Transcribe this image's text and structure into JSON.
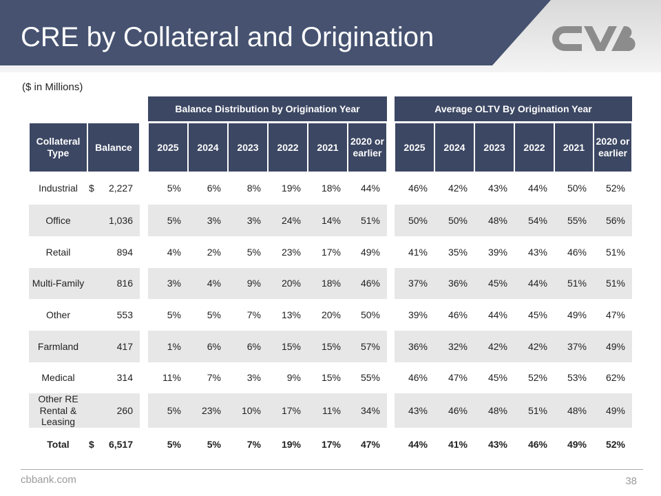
{
  "header": {
    "title": "CRE by Collateral and Origination",
    "subtitle": "($ in Millions)"
  },
  "table": {
    "group_headers": {
      "distribution": "Balance Distribution by Origination Year",
      "oltv": "Average OLTV By Origination Year"
    },
    "columns": {
      "type": "Collateral Type",
      "balance": "Balance",
      "distribution": [
        "2025",
        "2024",
        "2023",
        "2022",
        "2021",
        "2020 or earlier"
      ],
      "oltv": [
        "2025",
        "2024",
        "2023",
        "2022",
        "2021",
        "2020 or earlier"
      ]
    },
    "rows": [
      {
        "type": "Industrial",
        "currency": "$",
        "balance": "2,227",
        "distribution": [
          "5%",
          "6%",
          "8%",
          "19%",
          "18%",
          "44%"
        ],
        "oltv": [
          "46%",
          "42%",
          "43%",
          "44%",
          "50%",
          "52%"
        ]
      },
      {
        "type": "Office",
        "balance": "1,036",
        "distribution": [
          "5%",
          "3%",
          "3%",
          "24%",
          "14%",
          "51%"
        ],
        "oltv": [
          "50%",
          "50%",
          "48%",
          "54%",
          "55%",
          "56%"
        ]
      },
      {
        "type": "Retail",
        "balance": "894",
        "distribution": [
          "4%",
          "2%",
          "5%",
          "23%",
          "17%",
          "49%"
        ],
        "oltv": [
          "41%",
          "35%",
          "39%",
          "43%",
          "46%",
          "51%"
        ]
      },
      {
        "type": "Multi-Family",
        "balance": "816",
        "distribution": [
          "3%",
          "4%",
          "9%",
          "20%",
          "18%",
          "46%"
        ],
        "oltv": [
          "37%",
          "36%",
          "45%",
          "44%",
          "51%",
          "51%"
        ]
      },
      {
        "type": "Other",
        "balance": "553",
        "distribution": [
          "5%",
          "5%",
          "7%",
          "13%",
          "20%",
          "50%"
        ],
        "oltv": [
          "39%",
          "46%",
          "44%",
          "45%",
          "49%",
          "47%"
        ]
      },
      {
        "type": "Farmland",
        "balance": "417",
        "distribution": [
          "1%",
          "6%",
          "6%",
          "15%",
          "15%",
          "57%"
        ],
        "oltv": [
          "36%",
          "32%",
          "42%",
          "42%",
          "37%",
          "49%"
        ]
      },
      {
        "type": "Medical",
        "balance": "314",
        "distribution": [
          "11%",
          "7%",
          "3%",
          "9%",
          "15%",
          "55%"
        ],
        "oltv": [
          "46%",
          "47%",
          "45%",
          "52%",
          "53%",
          "62%"
        ]
      },
      {
        "type": "Other RE Rental & Leasing",
        "balance": "260",
        "distribution": [
          "5%",
          "23%",
          "10%",
          "17%",
          "11%",
          "34%"
        ],
        "oltv": [
          "43%",
          "46%",
          "48%",
          "51%",
          "48%",
          "49%"
        ]
      },
      {
        "type": "Total",
        "currency": "$",
        "balance": "6,517",
        "distribution": [
          "5%",
          "5%",
          "7%",
          "19%",
          "17%",
          "47%"
        ],
        "oltv": [
          "44%",
          "41%",
          "43%",
          "46%",
          "49%",
          "52%"
        ]
      }
    ]
  },
  "footer": {
    "site": "cbbank.com",
    "page": "38"
  }
}
